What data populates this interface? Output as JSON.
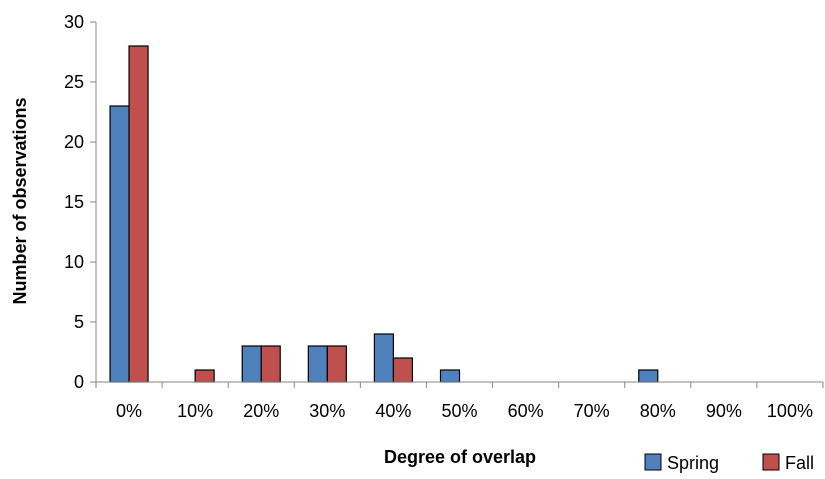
{
  "chart_data": {
    "type": "bar",
    "title": "",
    "xlabel": "Degree of overlap",
    "ylabel": "Number of observations",
    "categories": [
      "0%",
      "10%",
      "20%",
      "30%",
      "40%",
      "50%",
      "60%",
      "70%",
      "80%",
      "90%",
      "100%"
    ],
    "y_ticks": [
      "0",
      "5",
      "10",
      "15",
      "20",
      "25",
      "30"
    ],
    "ylim": [
      0,
      30
    ],
    "grid": false,
    "legend_position": "bottom-right",
    "series": [
      {
        "name": "Spring",
        "color": "#4F81BD",
        "values": [
          23,
          0,
          3,
          3,
          4,
          1,
          0,
          0,
          1,
          0,
          0
        ]
      },
      {
        "name": "Fall",
        "color": "#C0504D",
        "values": [
          28,
          1,
          3,
          3,
          2,
          0,
          0,
          0,
          0,
          0,
          0
        ]
      }
    ]
  }
}
